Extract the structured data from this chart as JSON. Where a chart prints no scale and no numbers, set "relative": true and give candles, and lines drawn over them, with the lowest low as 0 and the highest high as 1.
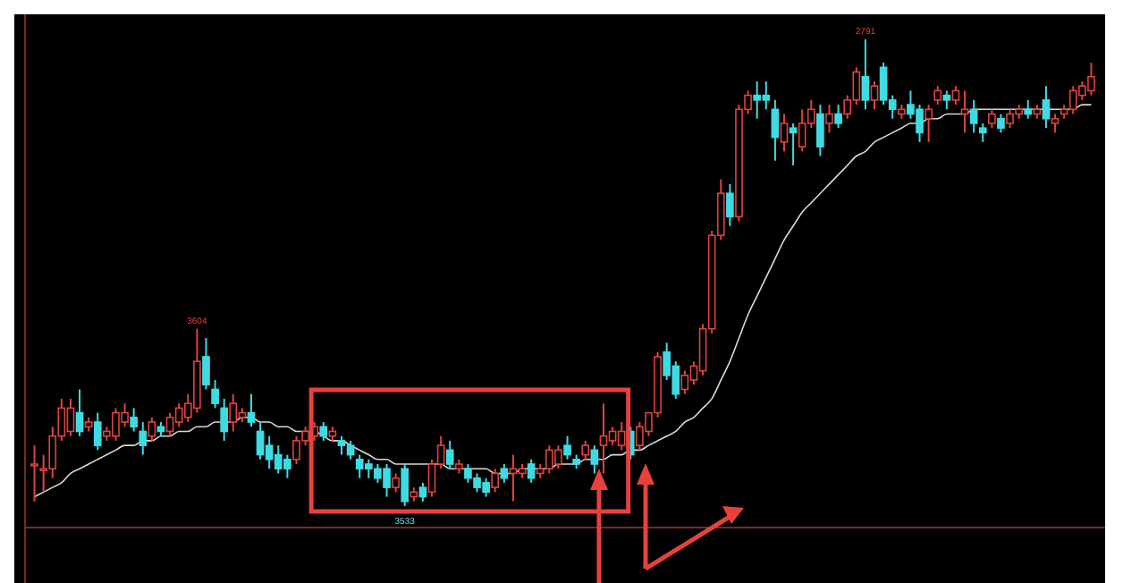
{
  "chart_data": {
    "type": "candlestick",
    "relative": true,
    "colors": [
      "#e0443c",
      "#e0443c",
      "#e0443c",
      "#e0443c",
      "#e0443c",
      "#3fdbe3",
      "#e0443c",
      "#3fdbe3",
      "#e0443c",
      "#e0443c",
      "#e0443c",
      "#3fdbe3",
      "#3fdbe3",
      "#e0443c",
      "#3fdbe3",
      "#e0443c",
      "#e0443c",
      "#e0443c",
      "#e0443c",
      "#3fdbe3",
      "#3fdbe3",
      "#3fdbe3",
      "#e0443c",
      "#e0443c",
      "#3fdbe3",
      "#3fdbe3",
      "#3fdbe3",
      "#3fdbe3",
      "#3fdbe3",
      "#e0443c",
      "#e0443c",
      "#e0443c",
      "#3fdbe3",
      "#e0443c",
      "#3fdbe3",
      "#3fdbe3",
      "#3fdbe3",
      "#3fdbe3",
      "#3fdbe3",
      "#3fdbe3",
      "#e0443c",
      "#3fdbe3",
      "#e0443c",
      "#3fdbe3",
      "#e0443c",
      "#e0443c",
      "#3fdbe3",
      "#e0443c",
      "#3fdbe3",
      "#3fdbe3",
      "#3fdbe3",
      "#e0443c",
      "#3fdbe3",
      "#e0443c",
      "#e0443c",
      "#3fdbe3",
      "#e0443c",
      "#e0443c",
      "#e0443c",
      "#3fdbe3",
      "#3fdbe3",
      "#e0443c",
      "#3fdbe3",
      "#e0443c",
      "#e0443c",
      "#e0443c",
      "#3fdbe3",
      "#e0443c",
      "#e0443c",
      "#e0443c",
      "#3fdbe3",
      "#3fdbe3",
      "#e0443c",
      "#e0443c",
      "#e0443c",
      "#e0443c",
      "#e0443c",
      "#3fdbe3",
      "#e0443c",
      "#e0443c",
      "#3fdbe3",
      "#3fdbe3",
      "#3fdbe3",
      "#e0443c",
      "#3fdbe3",
      "#e0443c",
      "#e0443c",
      "#3fdbe3",
      "#e0443c",
      "#3fdbe3",
      "#e0443c",
      "#e0443c",
      "#3fdbe3",
      "#e0443c",
      "#3fdbe3",
      "#3fdbe3",
      "#e0443c",
      "#3fdbe3",
      "#3fdbe3",
      "#e0443c",
      "#e0443c",
      "#3fdbe3",
      "#e0443c",
      "#e0443c",
      "#3fdbe3",
      "#3fdbe3",
      "#e0443c",
      "#3fdbe3",
      "#e0443c",
      "#e0443c",
      "#3fdbe3",
      "#e0443c",
      "#3fdbe3",
      "#e0443c",
      "#e0443c",
      "#e0443c",
      "#e0443c",
      "#e0443c"
    ],
    "categories": [
      null,
      null,
      null,
      null,
      null,
      null,
      null,
      null,
      null,
      null,
      null,
      null,
      null,
      null,
      null,
      null,
      null,
      null,
      null,
      null,
      null,
      null,
      null,
      null,
      null,
      null,
      null,
      null,
      null,
      null,
      null,
      null,
      null,
      null,
      null,
      null,
      null,
      null,
      null,
      null,
      null,
      null,
      null,
      null,
      null,
      null,
      null,
      null,
      null,
      null,
      null,
      null,
      null,
      null,
      null,
      null,
      null,
      null,
      null,
      null,
      null,
      null,
      null,
      null,
      null,
      null,
      null,
      null,
      null,
      null,
      null,
      null,
      null,
      null,
      null,
      null,
      null,
      null,
      null,
      null,
      null,
      null,
      null,
      null,
      null,
      null,
      null,
      null,
      null,
      null,
      null,
      null,
      null,
      null,
      null,
      null,
      null,
      null,
      null,
      null,
      null,
      null,
      null,
      null,
      null,
      null,
      null,
      null,
      null,
      null,
      null,
      null,
      null,
      null,
      null,
      null,
      null,
      null
    ],
    "ohlc": [
      [
        0.09,
        0.13,
        0.01,
        0.09
      ],
      [
        0.08,
        0.11,
        0.03,
        0.08
      ],
      [
        0.08,
        0.17,
        0.06,
        0.15
      ],
      [
        0.15,
        0.23,
        0.14,
        0.21
      ],
      [
        0.16,
        0.23,
        0.15,
        0.21
      ],
      [
        0.2,
        0.25,
        0.15,
        0.16
      ],
      [
        0.17,
        0.19,
        0.16,
        0.18
      ],
      [
        0.18,
        0.2,
        0.12,
        0.13
      ],
      [
        0.15,
        0.17,
        0.14,
        0.16
      ],
      [
        0.15,
        0.21,
        0.14,
        0.2
      ],
      [
        0.18,
        0.22,
        0.17,
        0.2
      ],
      [
        0.19,
        0.21,
        0.16,
        0.17
      ],
      [
        0.16,
        0.18,
        0.11,
        0.13
      ],
      [
        0.15,
        0.19,
        0.14,
        0.18
      ],
      [
        0.17,
        0.18,
        0.15,
        0.16
      ],
      [
        0.16,
        0.2,
        0.15,
        0.19
      ],
      [
        0.18,
        0.22,
        0.17,
        0.21
      ],
      [
        0.19,
        0.24,
        0.18,
        0.22
      ],
      [
        0.21,
        0.38,
        0.2,
        0.31
      ],
      [
        0.32,
        0.36,
        0.25,
        0.26
      ],
      [
        0.25,
        0.27,
        0.21,
        0.22
      ],
      [
        0.21,
        0.23,
        0.14,
        0.16
      ],
      [
        0.18,
        0.24,
        0.16,
        0.22
      ],
      [
        0.19,
        0.21,
        0.18,
        0.2
      ],
      [
        0.2,
        0.24,
        0.17,
        0.18
      ],
      [
        0.16,
        0.18,
        0.1,
        0.11
      ],
      [
        0.13,
        0.15,
        0.08,
        0.1
      ],
      [
        0.11,
        0.13,
        0.07,
        0.08
      ],
      [
        0.1,
        0.11,
        0.06,
        0.08
      ],
      [
        0.1,
        0.15,
        0.09,
        0.14
      ],
      [
        0.14,
        0.17,
        0.13,
        0.16
      ],
      [
        0.15,
        0.18,
        0.14,
        0.17
      ],
      [
        0.17,
        0.18,
        0.14,
        0.15
      ],
      [
        0.15,
        0.17,
        0.14,
        0.16
      ],
      [
        0.14,
        0.15,
        0.11,
        0.13
      ],
      [
        0.13,
        0.14,
        0.1,
        0.11
      ],
      [
        0.1,
        0.11,
        0.06,
        0.08
      ],
      [
        0.09,
        0.1,
        0.06,
        0.08
      ],
      [
        0.08,
        0.09,
        0.05,
        0.06
      ],
      [
        0.08,
        0.09,
        0.02,
        0.04
      ],
      [
        0.04,
        0.07,
        0.03,
        0.06
      ],
      [
        0.08,
        0.09,
        0,
        0.01
      ],
      [
        0.02,
        0.04,
        0.01,
        0.03
      ],
      [
        0.04,
        0.05,
        0.01,
        0.02
      ],
      [
        0.03,
        0.1,
        0.02,
        0.09
      ],
      [
        0.09,
        0.15,
        0.08,
        0.13
      ],
      [
        0.12,
        0.14,
        0.08,
        0.09
      ],
      [
        0.08,
        0.1,
        0.07,
        0.09
      ],
      [
        0.08,
        0.09,
        0.05,
        0.06
      ],
      [
        0.06,
        0.07,
        0.03,
        0.04
      ],
      [
        0.05,
        0.06,
        0.02,
        0.03
      ],
      [
        0.04,
        0.08,
        0.03,
        0.07
      ],
      [
        0.08,
        0.09,
        0.05,
        0.06
      ],
      [
        0.07,
        0.11,
        0.01,
        0.08
      ],
      [
        0.07,
        0.09,
        0.06,
        0.08
      ],
      [
        0.09,
        0.1,
        0.05,
        0.06
      ],
      [
        0.07,
        0.09,
        0.06,
        0.08
      ],
      [
        0.08,
        0.13,
        0.07,
        0.12
      ],
      [
        0.09,
        0.13,
        0.08,
        0.12
      ],
      [
        0.13,
        0.15,
        0.1,
        0.11
      ],
      [
        0.1,
        0.11,
        0.08,
        0.09
      ],
      [
        0.11,
        0.14,
        0.1,
        0.13
      ],
      [
        0.12,
        0.13,
        0.07,
        0.09
      ],
      [
        0.13,
        0.22,
        0.07,
        0.15
      ],
      [
        0.14,
        0.17,
        0.13,
        0.16
      ],
      [
        0.13,
        0.18,
        0.12,
        0.16
      ],
      [
        0.16,
        0.17,
        0.1,
        0.11
      ],
      [
        0.13,
        0.18,
        0.12,
        0.17
      ],
      [
        0.16,
        0.2,
        0.15,
        0.2
      ],
      [
        0.2,
        0.33,
        0.19,
        0.32
      ],
      [
        0.33,
        0.35,
        0.27,
        0.28
      ],
      [
        0.3,
        0.31,
        0.23,
        0.24
      ],
      [
        0.25,
        0.29,
        0.24,
        0.28
      ],
      [
        0.27,
        0.31,
        0.26,
        0.3
      ],
      [
        0.29,
        0.39,
        0.28,
        0.38
      ],
      [
        0.38,
        0.59,
        0.37,
        0.58
      ],
      [
        0.58,
        0.7,
        0.57,
        0.67
      ],
      [
        0.67,
        0.69,
        0.6,
        0.62
      ],
      [
        0.62,
        0.86,
        0.61,
        0.85
      ],
      [
        0.85,
        0.89,
        0.84,
        0.88
      ],
      [
        0.88,
        0.91,
        0.83,
        0.87
      ],
      [
        0.88,
        0.91,
        0.85,
        0.87
      ],
      [
        0.85,
        0.87,
        0.74,
        0.79
      ],
      [
        0.78,
        0.84,
        0.76,
        0.82
      ],
      [
        0.81,
        0.82,
        0.73,
        0.8
      ],
      [
        0.77,
        0.85,
        0.76,
        0.82
      ],
      [
        0.82,
        0.87,
        0.81,
        0.85
      ],
      [
        0.84,
        0.86,
        0.75,
        0.77
      ],
      [
        0.82,
        0.86,
        0.8,
        0.84
      ],
      [
        0.84,
        0.86,
        0.81,
        0.82
      ],
      [
        0.84,
        0.88,
        0.83,
        0.87
      ],
      [
        0.87,
        0.94,
        0.86,
        0.93
      ],
      [
        0.92,
        1,
        0.85,
        0.87
      ],
      [
        0.87,
        0.91,
        0.85,
        0.9
      ],
      [
        0.94,
        0.95,
        0.86,
        0.87
      ],
      [
        0.87,
        0.88,
        0.83,
        0.85
      ],
      [
        0.84,
        0.86,
        0.83,
        0.85
      ],
      [
        0.86,
        0.89,
        0.83,
        0.84
      ],
      [
        0.85,
        0.86,
        0.78,
        0.8
      ],
      [
        0.83,
        0.86,
        0.78,
        0.85
      ],
      [
        0.87,
        0.9,
        0.86,
        0.89
      ],
      [
        0.88,
        0.89,
        0.85,
        0.87
      ],
      [
        0.87,
        0.9,
        0.86,
        0.89
      ],
      [
        0.84,
        0.89,
        0.8,
        0.85
      ],
      [
        0.85,
        0.87,
        0.8,
        0.82
      ],
      [
        0.81,
        0.82,
        0.78,
        0.8
      ],
      [
        0.82,
        0.85,
        0.81,
        0.84
      ],
      [
        0.83,
        0.84,
        0.8,
        0.81
      ],
      [
        0.82,
        0.85,
        0.81,
        0.84
      ],
      [
        0.84,
        0.86,
        0.83,
        0.85
      ],
      [
        0.85,
        0.87,
        0.83,
        0.84
      ],
      [
        0.84,
        0.86,
        0.83,
        0.85
      ],
      [
        0.87,
        0.9,
        0.81,
        0.83
      ],
      [
        0.82,
        0.84,
        0.8,
        0.83
      ],
      [
        0.84,
        0.86,
        0.83,
        0.85
      ],
      [
        0.85,
        0.9,
        0.84,
        0.89
      ],
      [
        0.88,
        0.91,
        0.87,
        0.9
      ],
      [
        0.89,
        0.95,
        0.88,
        0.92
      ]
    ],
    "series": [
      {
        "type": "line",
        "color": "#d9d9d9",
        "values": [
          0.02,
          0.03,
          0.04,
          0.05,
          0.07,
          0.08,
          0.09,
          0.1,
          0.11,
          0.12,
          0.13,
          0.13,
          0.14,
          0.14,
          0.15,
          0.15,
          0.16,
          0.16,
          0.17,
          0.17,
          0.18,
          0.18,
          0.18,
          0.19,
          0.19,
          0.18,
          0.18,
          0.17,
          0.17,
          0.16,
          0.16,
          0.16,
          0.15,
          0.14,
          0.14,
          0.13,
          0.12,
          0.11,
          0.1,
          0.1,
          0.09,
          0.09,
          0.09,
          0.09,
          0.09,
          0.09,
          0.08,
          0.08,
          0.08,
          0.08,
          0.08,
          0.07,
          0.07,
          0.07,
          0.08,
          0.08,
          0.08,
          0.08,
          0.09,
          0.09,
          0.09,
          0.1,
          0.1,
          0.1,
          0.11,
          0.11,
          0.12,
          0.12,
          0.13,
          0.14,
          0.15,
          0.16,
          0.18,
          0.19,
          0.21,
          0.23,
          0.27,
          0.31,
          0.36,
          0.41,
          0.45,
          0.49,
          0.53,
          0.57,
          0.6,
          0.63,
          0.65,
          0.67,
          0.69,
          0.71,
          0.73,
          0.75,
          0.76,
          0.78,
          0.79,
          0.8,
          0.81,
          0.82,
          0.82,
          0.83,
          0.83,
          0.84,
          0.84,
          0.84,
          0.85,
          0.85,
          0.85,
          0.85,
          0.85,
          0.85,
          0.85,
          0.85,
          0.85,
          0.85,
          0.85,
          0.85,
          0.86,
          0.86
        ]
      }
    ],
    "annotations": [
      {
        "text": "3604",
        "y": 0.38
      },
      {
        "text": "2791",
        "y": 1
      },
      {
        "text": "3533",
        "y": 0
      }
    ]
  }
}
